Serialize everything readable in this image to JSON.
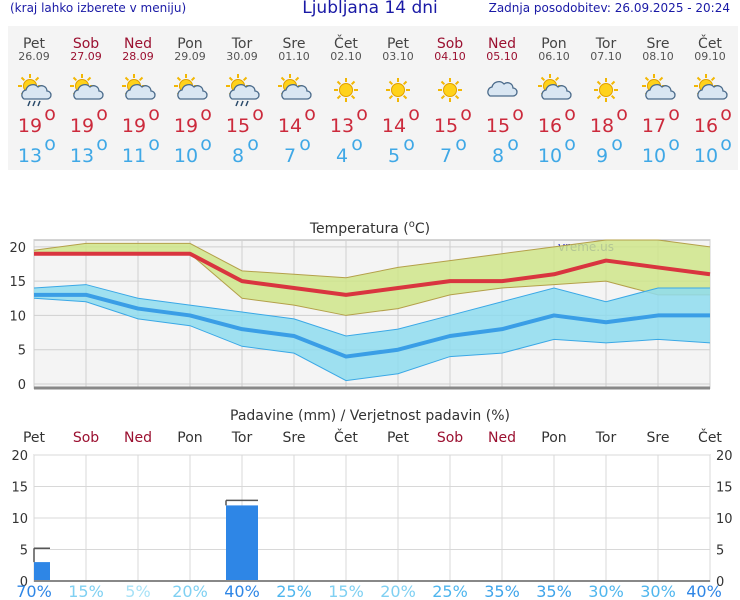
{
  "header": {
    "menu_hint": "(kraj lahko izberete v meniju)",
    "title": "Ljubljana 14 dni",
    "updated": "Zadnja posodobitev: 26.09.2025 - 20:24"
  },
  "days": [
    {
      "day": "Pet",
      "date": "26.09",
      "weekend": false,
      "icon": "sun-cloud-rain-icon",
      "tmax": "19",
      "tmin": "13"
    },
    {
      "day": "Sob",
      "date": "27.09",
      "weekend": true,
      "icon": "sun-cloud-icon",
      "tmax": "19",
      "tmin": "13"
    },
    {
      "day": "Ned",
      "date": "28.09",
      "weekend": true,
      "icon": "sun-cloud-icon",
      "tmax": "19",
      "tmin": "11"
    },
    {
      "day": "Pon",
      "date": "29.09",
      "weekend": false,
      "icon": "sun-cloud-icon",
      "tmax": "19",
      "tmin": "10"
    },
    {
      "day": "Tor",
      "date": "30.09",
      "weekend": false,
      "icon": "sun-cloud-rain-icon",
      "tmax": "15",
      "tmin": "8"
    },
    {
      "day": "Sre",
      "date": "01.10",
      "weekend": false,
      "icon": "sun-cloud-icon",
      "tmax": "14",
      "tmin": "7"
    },
    {
      "day": "Čet",
      "date": "02.10",
      "weekend": false,
      "icon": "sun-icon",
      "tmax": "13",
      "tmin": "4"
    },
    {
      "day": "Pet",
      "date": "03.10",
      "weekend": false,
      "icon": "sun-icon",
      "tmax": "14",
      "tmin": "5"
    },
    {
      "day": "Sob",
      "date": "04.10",
      "weekend": true,
      "icon": "sun-icon",
      "tmax": "15",
      "tmin": "7"
    },
    {
      "day": "Ned",
      "date": "05.10",
      "weekend": true,
      "icon": "cloud-icon",
      "tmax": "15",
      "tmin": "8"
    },
    {
      "day": "Pon",
      "date": "06.10",
      "weekend": false,
      "icon": "sun-cloud-icon",
      "tmax": "16",
      "tmin": "10"
    },
    {
      "day": "Tor",
      "date": "07.10",
      "weekend": false,
      "icon": "sun-icon",
      "tmax": "18",
      "tmin": "9"
    },
    {
      "day": "Sre",
      "date": "08.10",
      "weekend": false,
      "icon": "sun-cloud-icon",
      "tmax": "17",
      "tmin": "10"
    },
    {
      "day": "Čet",
      "date": "09.10",
      "weekend": false,
      "icon": "sun-cloud-icon",
      "tmax": "16",
      "tmin": "10"
    }
  ],
  "colors": {
    "max_line": "#d9353f",
    "max_band": "#cfe58a",
    "min_line": "#3a9ee6",
    "min_band": "#8edcef",
    "precip_bar": "#2e86e6",
    "weekend": "#9b1030"
  },
  "chart_data": [
    {
      "type": "line",
      "title": "Temperatura (°C)",
      "title_parts": {
        "pre": "Temperatura (",
        "sup": "o",
        "post": "C)"
      },
      "watermark": "vreme.us",
      "x": [
        "Pet",
        "Sob",
        "Ned",
        "Pon",
        "Tor",
        "Sre",
        "Čet",
        "Pet",
        "Sob",
        "Ned",
        "Pon",
        "Tor",
        "Sre",
        "Čet"
      ],
      "ylim": [
        0,
        21
      ],
      "yticks": [
        0,
        5,
        10,
        15,
        20
      ],
      "grid": true,
      "series": [
        {
          "values": [
            19,
            19,
            19,
            19,
            15,
            14,
            13,
            14,
            15,
            15,
            16,
            18,
            17,
            16
          ],
          "band_upper": [
            19.5,
            20.5,
            20.5,
            20.5,
            16.5,
            16,
            15.5,
            17,
            18,
            19,
            20,
            21,
            21,
            20
          ],
          "band_lower": [
            19,
            19,
            19,
            19,
            12.5,
            11.5,
            10,
            11,
            13,
            14,
            14.5,
            15,
            13,
            13
          ]
        },
        {
          "values": [
            13,
            13,
            11,
            10,
            8,
            7,
            4,
            5,
            7,
            8,
            10,
            9,
            10,
            10
          ],
          "band_upper": [
            14,
            14.5,
            12.5,
            11.5,
            10.5,
            9.5,
            7,
            8,
            10,
            12,
            14,
            12,
            14,
            14
          ],
          "band_lower": [
            12.5,
            12,
            9.5,
            8.5,
            5.5,
            4.5,
            0.5,
            1.5,
            4,
            4.5,
            6.5,
            6,
            6.5,
            6
          ]
        }
      ]
    },
    {
      "type": "bar",
      "title": "Padavine (mm) / Verjetnost padavin (%)",
      "categories": [
        "Pet",
        "Sob",
        "Ned",
        "Pon",
        "Tor",
        "Sre",
        "Čet",
        "Pet",
        "Sob",
        "Ned",
        "Pon",
        "Tor",
        "Sre",
        "Čet"
      ],
      "values": [
        3,
        0,
        0,
        0,
        12,
        0,
        0,
        0,
        0,
        0,
        0,
        0,
        0,
        0
      ],
      "error_upper": [
        5.2,
        0,
        0,
        0,
        12.8,
        0,
        0,
        0,
        0,
        0,
        0,
        0,
        0,
        0
      ],
      "probability": [
        "70%",
        "15%",
        "5%",
        "20%",
        "40%",
        "25%",
        "15%",
        "20%",
        "25%",
        "35%",
        "35%",
        "30%",
        "30%",
        "40%"
      ],
      "ylim": [
        0,
        20
      ],
      "yticks": [
        0,
        5,
        10,
        15,
        20
      ],
      "grid": true
    }
  ]
}
